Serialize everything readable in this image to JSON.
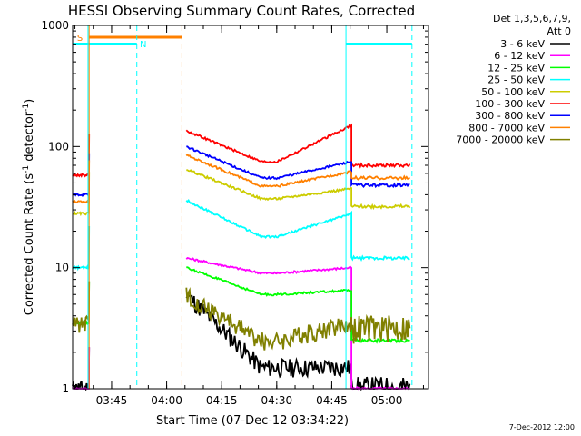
{
  "chart_data": {
    "type": "line",
    "title": "HESSI Observing Summary Count Rates, Corrected",
    "xlabel": "Start Time (07-Dec-12 03:34:22)",
    "ylabel_main": "Corrected Count Rate (s",
    "ylabel_sup1": "-1",
    "ylabel_mid": " detector",
    "ylabel_sup2": "-1",
    "ylabel_end": ")",
    "yscale": "log",
    "ylim": [
      1,
      1000
    ],
    "xlim_minutes": [
      0,
      97
    ],
    "x_ticks": [
      "03:45",
      "04:00",
      "04:15",
      "04:30",
      "04:45",
      "05:00"
    ],
    "y_ticks": [
      "1",
      "10",
      "100",
      "1000"
    ],
    "footer_timestamp": "7-Dec-2012 12:00",
    "legend": {
      "header_line1": "Det 1,3,5,6,7,9,",
      "header_line2": "Att 0",
      "placement": "right"
    },
    "flags": [
      {
        "label": "S",
        "color": "#ff8000"
      },
      {
        "label": "N",
        "color": "#00ffff"
      }
    ],
    "series": [
      {
        "name": "3 - 6 keV",
        "color": "#000000",
        "values": {
          "preflare": 1.0,
          "gap_end": 6,
          "mid": 1.5,
          "late": 1.5,
          "end": 1.0
        }
      },
      {
        "name": "6 - 12 keV",
        "color": "#ff00ff",
        "values": {
          "preflare": 1.0,
          "gap_end": 12,
          "mid": 9,
          "late": 10,
          "end": 1.0
        }
      },
      {
        "name": "12 - 25 keV",
        "color": "#00ff00",
        "values": {
          "preflare": 3.5,
          "gap_end": 10,
          "mid": 6,
          "late": 6.5,
          "end": 2.5
        }
      },
      {
        "name": "25 - 50 keV",
        "color": "#00ffff",
        "values": {
          "preflare": 10,
          "gap_end": 36,
          "mid": 18,
          "late": 28,
          "end": 12
        }
      },
      {
        "name": "50 - 100 keV",
        "color": "#cccc00",
        "values": {
          "preflare": 28,
          "gap_end": 65,
          "mid": 37,
          "late": 45,
          "end": 32
        }
      },
      {
        "name": "100 - 300 keV",
        "color": "#ff0000",
        "values": {
          "preflare": 58,
          "gap_end": 135,
          "mid": 75,
          "late": 150,
          "end": 70
        }
      },
      {
        "name": "300 - 800 keV",
        "color": "#0000ff",
        "values": {
          "preflare": 40,
          "gap_end": 100,
          "mid": 55,
          "late": 75,
          "end": 48
        }
      },
      {
        "name": "800 - 7000 keV",
        "color": "#ff8000",
        "values": {
          "preflare": 35,
          "gap_end": 85,
          "mid": 47,
          "late": 62,
          "end": 55
        }
      },
      {
        "name": "7000 - 20000 keV",
        "color": "#808000",
        "values": {
          "preflare": 3.5,
          "gap_end": 6,
          "mid": 2.5,
          "late": 3.5,
          "end": 3.2
        }
      }
    ]
  }
}
